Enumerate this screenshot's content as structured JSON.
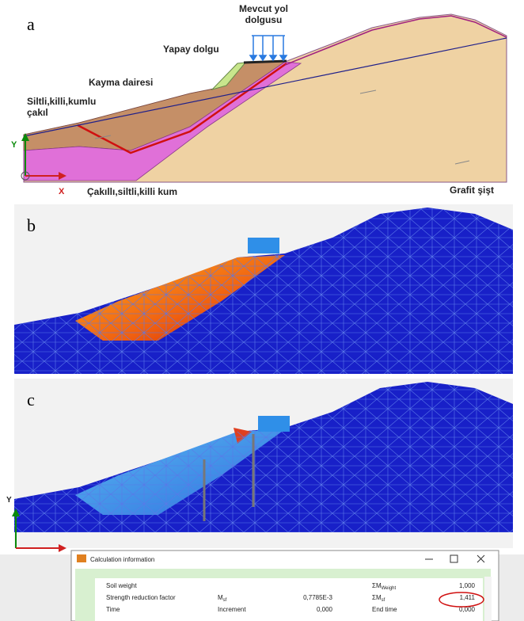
{
  "panel_a": {
    "label": "a",
    "road_fill": [
      "Mevcut yol",
      "dolgusu"
    ],
    "artificial_fill": "Yapay dolgu",
    "slip_circle": "Kayma dairesi",
    "upper_soil": [
      "Siltli,killi,kumlu",
      "çakıl"
    ],
    "y_axis": "Y",
    "x_axis": "X",
    "lower_soil": "Çakıllı,siltli,killi kum",
    "bedrock": "Grafit şişt"
  },
  "panel_b": {
    "label": "b"
  },
  "panel_c": {
    "label": "c",
    "y_axis": "Y"
  },
  "window": {
    "title": "Calculation information",
    "rows": [
      {
        "name": "Soil weight",
        "param": {
          "main": "",
          "sub": ""
        },
        "value": "",
        "sum": {
          "main": "ΣM",
          "sub": "Weight"
        },
        "sum_value": "1,000"
      },
      {
        "name": "Strength reduction factor",
        "param": {
          "main": "M",
          "sub": "sf"
        },
        "value": "0,7785E-3",
        "sum": {
          "main": "ΣM",
          "sub": "sf"
        },
        "sum_value": "1,411"
      },
      {
        "name": "Time",
        "param": {
          "main": "Increment",
          "sub": ""
        },
        "value": "0,000",
        "sum": {
          "main": "End time",
          "sub": ""
        },
        "sum_value": "0,000"
      }
    ]
  }
}
